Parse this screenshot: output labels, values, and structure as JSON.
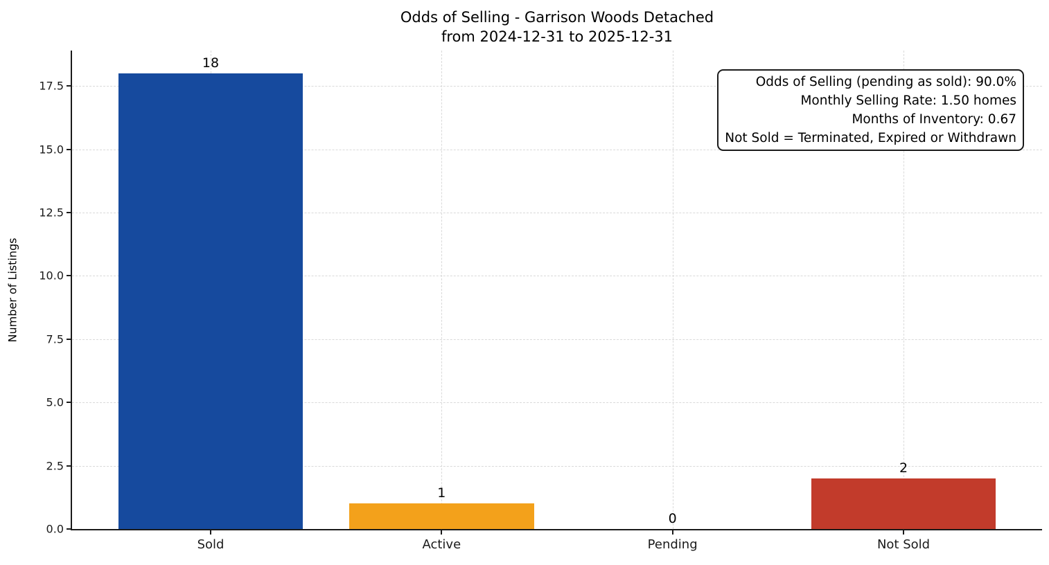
{
  "title": {
    "line1": "Odds of Selling - Garrison Woods Detached",
    "line2": "from 2024-12-31 to 2025-12-31"
  },
  "chart_data": {
    "type": "bar",
    "title": "Odds of Selling - Garrison Woods Detached",
    "subtitle": "from 2024-12-31 to 2025-12-31",
    "categories": [
      "Sold",
      "Active",
      "Pending",
      "Not Sold"
    ],
    "values": [
      18,
      1,
      0,
      2
    ],
    "bar_value_labels": [
      "18",
      "1",
      "0",
      "2"
    ],
    "bar_colors": [
      "#164a9e",
      "#f3a11b",
      null,
      "#c23b2b"
    ],
    "xlabel": "",
    "ylabel": "Number of Listings",
    "ylim": [
      0,
      18.9
    ],
    "yticks": [
      0,
      2.5,
      5,
      7.5,
      10,
      12.5,
      15,
      17.5
    ],
    "ytick_labels": [
      "0.0",
      "2.5",
      "5.0",
      "7.5",
      "10.0",
      "12.5",
      "15.0",
      "17.5"
    ],
    "grid": "dashed",
    "legend": false,
    "colors": {
      "axis": "#1a1a1a",
      "grid": "#d9d9d9",
      "text": "#000000"
    },
    "annotation": {
      "lines": [
        "Odds of Selling (pending as sold): 90.0%",
        "Monthly Selling Rate: 1.50 homes",
        "Months of Inventory: 0.67",
        "Not Sold = Terminated, Expired or Withdrawn"
      ]
    }
  }
}
